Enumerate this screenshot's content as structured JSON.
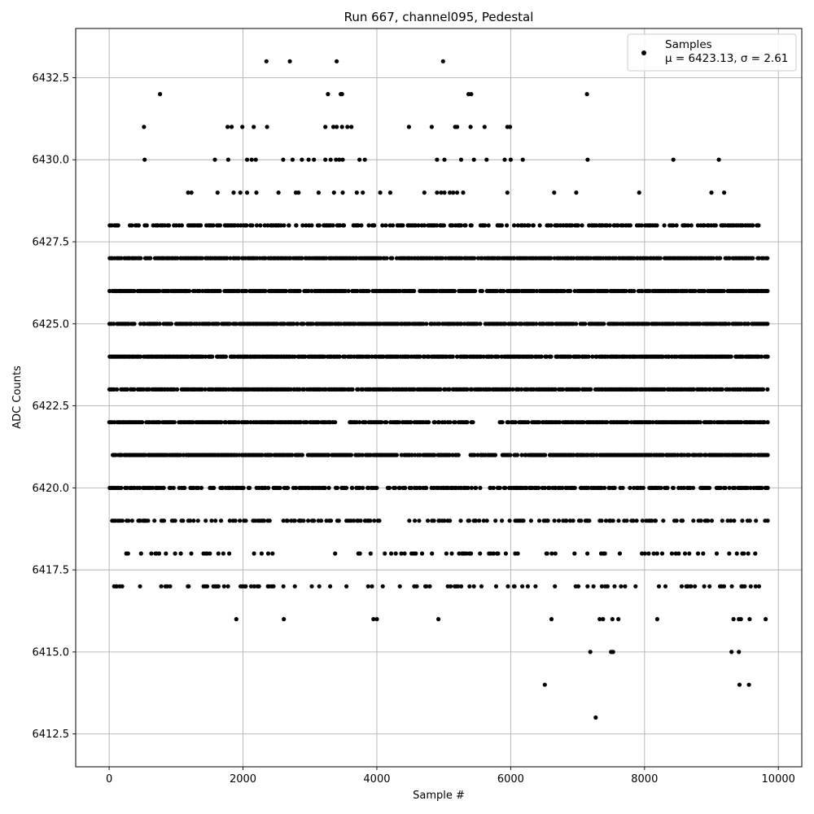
{
  "chart_data": {
    "type": "scatter",
    "title": "Run 667, channel095, Pedestal",
    "xlabel": "Sample #",
    "ylabel": "ADC Counts",
    "xlim": [
      -500,
      10350
    ],
    "ylim": [
      6411.5,
      6434.0
    ],
    "xticks": [
      0,
      2000,
      4000,
      6000,
      8000,
      10000
    ],
    "xtick_labels": [
      "0",
      "2000",
      "4000",
      "6000",
      "8000",
      "10000"
    ],
    "yticks": [
      6412.5,
      6415.0,
      6417.5,
      6420.0,
      6422.5,
      6425.0,
      6427.5,
      6430.0,
      6432.5
    ],
    "ytick_labels": [
      "6412.5",
      "6415.0",
      "6417.5",
      "6420.0",
      "6422.5",
      "6425.0",
      "6427.5",
      "6430.0",
      "6432.5"
    ],
    "grid": true,
    "legend": {
      "placement": "top-right",
      "line1": "Samples",
      "line2": "μ = 6423.13, σ = 2.61"
    },
    "series": [
      {
        "name": "Samples",
        "color": "#000000",
        "marker": "circle",
        "dense_levels": [
          {
            "y": 6421,
            "x_range": [
              0,
              9840
            ],
            "gaps": [
              [
                5240,
                5330
              ]
            ]
          },
          {
            "y": 6422,
            "x_range": [
              0,
              9840
            ],
            "gaps": [
              [
                3390,
                3580
              ],
              [
                5460,
                5820
              ]
            ]
          },
          {
            "y": 6423,
            "x_range": [
              0,
              9840
            ],
            "gaps": []
          },
          {
            "y": 6424,
            "x_range": [
              0,
              9840
            ],
            "gaps": []
          },
          {
            "y": 6425,
            "x_range": [
              0,
              9840
            ],
            "gaps": []
          },
          {
            "y": 6426,
            "x_range": [
              0,
              9840
            ],
            "gaps": []
          },
          {
            "y": 6427,
            "x_range": [
              0,
              9840
            ],
            "gaps": []
          }
        ],
        "sparse_levels": [
          {
            "y": 6428,
            "x_range": [
              0,
              9780
            ],
            "density": 0.55
          },
          {
            "y": 6420,
            "x_range": [
              0,
              9840
            ],
            "density": 0.6
          },
          {
            "y": 6419,
            "x_range": [
              0,
              9840
            ],
            "density": 0.4
          },
          {
            "y": 6418,
            "x_range": [
              200,
              9740
            ],
            "density": 0.2
          },
          {
            "y": 6417,
            "x_range": [
              0,
              9840
            ],
            "density": 0.2
          }
        ],
        "points": [
          [
            2350,
            6433
          ],
          [
            2700,
            6433
          ],
          [
            3400,
            6433
          ],
          [
            4990,
            6433
          ],
          [
            760,
            6432
          ],
          [
            3270,
            6432
          ],
          [
            3460,
            6432
          ],
          [
            3480,
            6432
          ],
          [
            5370,
            6432
          ],
          [
            5410,
            6432
          ],
          [
            7140,
            6432
          ],
          [
            520,
            6431
          ],
          [
            1770,
            6431
          ],
          [
            1830,
            6431
          ],
          [
            1990,
            6431
          ],
          [
            2160,
            6431
          ],
          [
            2360,
            6431
          ],
          [
            3230,
            6431
          ],
          [
            3350,
            6431
          ],
          [
            3400,
            6431
          ],
          [
            3480,
            6431
          ],
          [
            3560,
            6431
          ],
          [
            3620,
            6431
          ],
          [
            4480,
            6431
          ],
          [
            4820,
            6431
          ],
          [
            5170,
            6431
          ],
          [
            5200,
            6431
          ],
          [
            5400,
            6431
          ],
          [
            5610,
            6431
          ],
          [
            5950,
            6431
          ],
          [
            5990,
            6431
          ],
          [
            530,
            6430
          ],
          [
            1580,
            6430
          ],
          [
            1780,
            6430
          ],
          [
            2060,
            6430
          ],
          [
            2130,
            6430
          ],
          [
            2190,
            6430
          ],
          [
            2600,
            6430
          ],
          [
            2740,
            6430
          ],
          [
            2880,
            6430
          ],
          [
            2980,
            6430
          ],
          [
            3060,
            6430
          ],
          [
            3230,
            6430
          ],
          [
            3310,
            6430
          ],
          [
            3390,
            6430
          ],
          [
            3440,
            6430
          ],
          [
            3490,
            6430
          ],
          [
            3740,
            6430
          ],
          [
            3820,
            6430
          ],
          [
            4900,
            6430
          ],
          [
            5010,
            6430
          ],
          [
            5260,
            6430
          ],
          [
            5450,
            6430
          ],
          [
            5640,
            6430
          ],
          [
            5910,
            6430
          ],
          [
            6000,
            6430
          ],
          [
            6180,
            6430
          ],
          [
            7150,
            6430
          ],
          [
            8430,
            6430
          ],
          [
            9110,
            6430
          ],
          [
            1180,
            6429
          ],
          [
            1230,
            6429
          ],
          [
            1620,
            6429
          ],
          [
            1860,
            6429
          ],
          [
            1960,
            6429
          ],
          [
            2060,
            6429
          ],
          [
            2200,
            6429
          ],
          [
            2530,
            6429
          ],
          [
            2790,
            6429
          ],
          [
            2830,
            6429
          ],
          [
            3130,
            6429
          ],
          [
            3360,
            6429
          ],
          [
            3490,
            6429
          ],
          [
            3700,
            6429
          ],
          [
            3790,
            6429
          ],
          [
            4050,
            6429
          ],
          [
            4200,
            6429
          ],
          [
            4710,
            6429
          ],
          [
            4900,
            6429
          ],
          [
            4960,
            6429
          ],
          [
            5010,
            6429
          ],
          [
            5090,
            6429
          ],
          [
            5140,
            6429
          ],
          [
            5200,
            6429
          ],
          [
            5290,
            6429
          ],
          [
            5950,
            6429
          ],
          [
            6650,
            6429
          ],
          [
            6980,
            6429
          ],
          [
            7920,
            6429
          ],
          [
            9000,
            6429
          ],
          [
            9190,
            6429
          ],
          [
            1900,
            6416
          ],
          [
            2610,
            6416
          ],
          [
            3950,
            6416
          ],
          [
            4000,
            6416
          ],
          [
            4920,
            6416
          ],
          [
            6610,
            6416
          ],
          [
            7330,
            6416
          ],
          [
            7380,
            6416
          ],
          [
            7520,
            6416
          ],
          [
            7610,
            6416
          ],
          [
            8190,
            6416
          ],
          [
            9330,
            6416
          ],
          [
            9410,
            6416
          ],
          [
            9440,
            6416
          ],
          [
            9570,
            6416
          ],
          [
            9810,
            6416
          ],
          [
            7190,
            6415
          ],
          [
            7500,
            6415
          ],
          [
            7530,
            6415
          ],
          [
            9300,
            6415
          ],
          [
            9410,
            6415
          ],
          [
            6510,
            6414
          ],
          [
            9420,
            6414
          ],
          [
            9560,
            6414
          ],
          [
            7270,
            6413
          ]
        ]
      }
    ]
  }
}
